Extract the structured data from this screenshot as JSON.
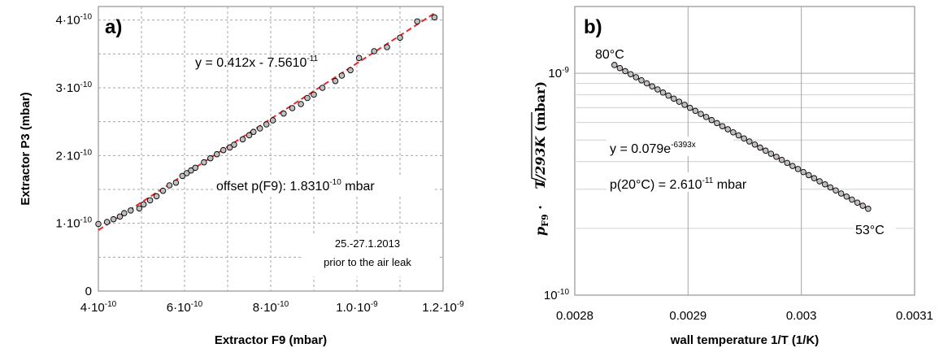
{
  "chart_data": [
    {
      "panel": "a)",
      "type": "scatter",
      "xlabel": "Extractor F9 (mbar)",
      "ylabel": "Extractor P3 (mbar)",
      "xlim": [
        4e-10,
        1.2e-09
      ],
      "ylim": [
        0,
        4.2e-10
      ],
      "x_ticks": [
        4e-10,
        6e-10,
        8e-10,
        1e-09,
        1.2e-09
      ],
      "x_tick_labels": [
        [
          "4",
          "-10"
        ],
        [
          "6",
          "-10"
        ],
        [
          "8",
          "-10"
        ],
        [
          "1.0",
          "-9"
        ],
        [
          "1.2",
          "-9"
        ]
      ],
      "y_ticks": [
        0,
        1e-10,
        2e-10,
        3e-10,
        4e-10
      ],
      "y_tick_labels": [
        [
          "0",
          ""
        ],
        [
          "1",
          "-10"
        ],
        [
          "2",
          "-10"
        ],
        [
          "3",
          "-10"
        ],
        [
          "4",
          "-10"
        ]
      ],
      "grid": "dashed",
      "series": [
        {
          "kind": "points",
          "x": [
            4e-10,
            4.2e-10,
            4.35e-10,
            4.5e-10,
            4.6e-10,
            4.75e-10,
            4.95e-10,
            5.05e-10,
            5.2e-10,
            5.35e-10,
            5.5e-10,
            5.65e-10,
            5.8e-10,
            5.95e-10,
            6.05e-10,
            6.15e-10,
            6.25e-10,
            6.45e-10,
            6.6e-10,
            6.75e-10,
            6.9e-10,
            7.05e-10,
            7.15e-10,
            7.35e-10,
            7.5e-10,
            7.6e-10,
            7.75e-10,
            7.9e-10,
            8.05e-10,
            8.3e-10,
            8.5e-10,
            8.7e-10,
            8.85e-10,
            9e-10,
            9.2e-10,
            9.5e-10,
            9.65e-10,
            9.85e-10,
            1.005e-09,
            1.04e-09,
            1.07e-09,
            1.1e-09,
            1.14e-09,
            1.18e-09
          ],
          "y": [
            9.9e-11,
            1.02e-10,
            1.06e-10,
            1.1e-10,
            1.15e-10,
            1.19e-10,
            1.22e-10,
            1.28e-10,
            1.34e-10,
            1.4e-10,
            1.48e-10,
            1.56e-10,
            1.6e-10,
            1.7e-10,
            1.74e-10,
            1.78e-10,
            1.82e-10,
            1.9e-10,
            1.96e-10,
            2.02e-10,
            2.08e-10,
            2.12e-10,
            2.16e-10,
            2.24e-10,
            2.3e-10,
            2.35e-10,
            2.4e-10,
            2.46e-10,
            2.52e-10,
            2.62e-10,
            2.7e-10,
            2.76e-10,
            2.85e-10,
            2.9e-10,
            3e-10,
            3.1e-10,
            3.18e-10,
            3.26e-10,
            3.44e-10,
            3.54e-10,
            3.6e-10,
            3.74e-10,
            3.98e-10,
            4.04e-10
          ]
        },
        {
          "kind": "fit",
          "style": "dashed",
          "x": [
            4e-10,
            1.18e-09
          ],
          "y": [
            9e-11,
            4.1e-10
          ]
        }
      ],
      "annotations": [
        {
          "text": "y = 0.412x - 7.56",
          "exp_base": "10",
          "exp": "-11"
        },
        {
          "text": "offset p(F9): 1.83",
          "exp_base": "10",
          "exp": "-10",
          "suffix": " mbar"
        },
        {
          "text": "25.-27.1.2013"
        },
        {
          "text": "prior to the air leak"
        }
      ]
    },
    {
      "panel": "b)",
      "type": "scatter",
      "yscale": "log",
      "xlabel": "wall temperature 1/T (1/K)",
      "ylabel_parts": {
        "sym": "p",
        "sub": "F9",
        "dot": " · ",
        "root": "T/293K",
        "unit": " (mbar)"
      },
      "xlim": [
        0.0028,
        0.0031
      ],
      "ylim": [
        1e-10,
        2e-09
      ],
      "x_ticks": [
        0.0028,
        0.0029,
        0.003,
        0.0031
      ],
      "x_tick_labels": [
        "0.0028",
        "0.0029",
        "0.003",
        "0.0031"
      ],
      "y_ticks": [
        1e-10,
        1e-09
      ],
      "y_tick_labels": [
        [
          "10",
          "-10"
        ],
        [
          "10",
          "-9"
        ]
      ],
      "grid": "solid",
      "fit": {
        "a": 0.079,
        "b": -6393
      },
      "series": [
        {
          "kind": "points",
          "x_range": [
            0.002835,
            0.003059
          ],
          "count": 48
        },
        {
          "kind": "fit",
          "style": "dashed",
          "x_range": [
            0.002835,
            0.003059
          ]
        }
      ],
      "annotations": [
        {
          "text": "80°C"
        },
        {
          "text": "53°C"
        },
        {
          "text": "y = 0.079e",
          "exp": "-6393x"
        },
        {
          "text": "p(20°C) = 2.6",
          "exp_base": "10",
          "exp": "-11",
          "suffix": " mbar"
        }
      ]
    }
  ]
}
